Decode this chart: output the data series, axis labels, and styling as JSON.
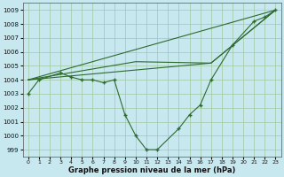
{
  "xlabel": "Graphe pression niveau de la mer (hPa)",
  "bg_color": "#c8e8f0",
  "line_color": "#2d6a2d",
  "grid_color": "#a0c8a0",
  "pressure_data": [
    [
      0,
      1003.0
    ],
    [
      1,
      1004.0
    ],
    [
      3,
      1004.5
    ],
    [
      4,
      1004.2
    ],
    [
      5,
      1004.0
    ],
    [
      6,
      1004.0
    ],
    [
      7,
      1003.8
    ],
    [
      8,
      1004.0
    ],
    [
      9,
      1001.5
    ],
    [
      10,
      1000.0
    ],
    [
      11,
      999.0
    ],
    [
      12,
      999.0
    ],
    [
      14,
      1000.5
    ],
    [
      15,
      1001.5
    ],
    [
      16,
      1002.2
    ],
    [
      17,
      1004.0
    ],
    [
      19,
      1006.5
    ],
    [
      21,
      1008.2
    ],
    [
      22,
      1008.5
    ],
    [
      23,
      1009.0
    ]
  ],
  "fan_lines": [
    [
      [
        0,
        1004.0
      ],
      [
        23,
        1009.0
      ]
    ],
    [
      [
        0,
        1004.0
      ],
      [
        17,
        1005.2
      ],
      [
        23,
        1009.0
      ]
    ],
    [
      [
        0,
        1004.0
      ],
      [
        10,
        1005.3
      ],
      [
        17,
        1005.2
      ],
      [
        23,
        1009.0
      ]
    ]
  ],
  "ylim": [
    998.5,
    1009.5
  ],
  "yticks": [
    999,
    1000,
    1001,
    1002,
    1003,
    1004,
    1005,
    1006,
    1007,
    1008,
    1009
  ],
  "xlim": [
    -0.5,
    23.5
  ],
  "xticks": [
    0,
    1,
    2,
    3,
    4,
    5,
    6,
    7,
    8,
    9,
    10,
    11,
    12,
    13,
    14,
    15,
    16,
    17,
    18,
    19,
    20,
    21,
    22,
    23
  ]
}
